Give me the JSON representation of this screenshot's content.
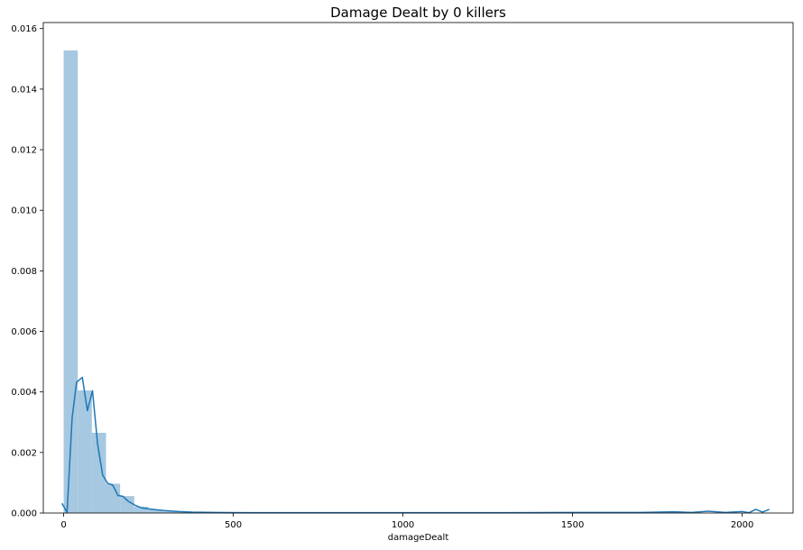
{
  "chart_data": {
    "type": "histogram",
    "title": "Damage Dealt by 0 killers",
    "xlabel": "damageDealt",
    "ylabel": "",
    "xlim": [
      -60,
      2150
    ],
    "ylim": [
      0,
      0.0162
    ],
    "x_ticks": [
      0,
      500,
      1000,
      1500,
      2000
    ],
    "y_ticks": [
      0.0,
      0.002,
      0.004,
      0.006,
      0.008,
      0.01,
      0.012,
      0.014,
      0.016
    ],
    "y_tick_labels": [
      "0.000",
      "0.002",
      "0.004",
      "0.006",
      "0.008",
      "0.010",
      "0.012",
      "0.014",
      "0.016"
    ],
    "grid": false,
    "colors": {
      "bars": "#a6c8e0",
      "kde_line": "#1f77b4",
      "axes": "#000000"
    },
    "histogram": {
      "bin_edges": [
        0,
        41.6,
        83.2,
        124.8,
        166.4,
        208,
        249.6,
        291.2,
        332.8,
        374.4,
        416,
        457.6,
        499.2
      ],
      "densities": [
        0.01528,
        0.00405,
        0.00265,
        0.00097,
        0.00056,
        0.00021,
        0.00011,
        6e-05,
        4e-05,
        2e-05,
        1e-05,
        1e-05
      ]
    },
    "kde": {
      "x": [
        -5,
        10,
        25,
        38,
        55,
        70,
        85,
        100,
        115,
        130,
        145,
        160,
        175,
        190,
        210,
        230,
        255,
        280,
        300,
        340,
        380,
        450,
        550,
        700,
        900,
        1100,
        1300,
        1500,
        1700,
        1800,
        1850,
        1900,
        1950,
        2000,
        2020,
        2040,
        2060,
        2080
      ],
      "y": [
        0.00032,
        2e-05,
        0.00315,
        0.00432,
        0.00448,
        0.00338,
        0.00404,
        0.00228,
        0.00125,
        0.00098,
        0.00092,
        0.00058,
        0.00055,
        0.00039,
        0.00026,
        0.00017,
        0.00013,
        0.0001,
        8e-05,
        5e-05,
        3e-05,
        2e-05,
        1e-05,
        1e-05,
        1e-05,
        1e-05,
        1e-05,
        2e-05,
        2e-05,
        4e-05,
        2e-05,
        6e-05,
        2e-05,
        5e-05,
        1e-05,
        0.00012,
        3e-05,
        0.00012
      ]
    }
  }
}
